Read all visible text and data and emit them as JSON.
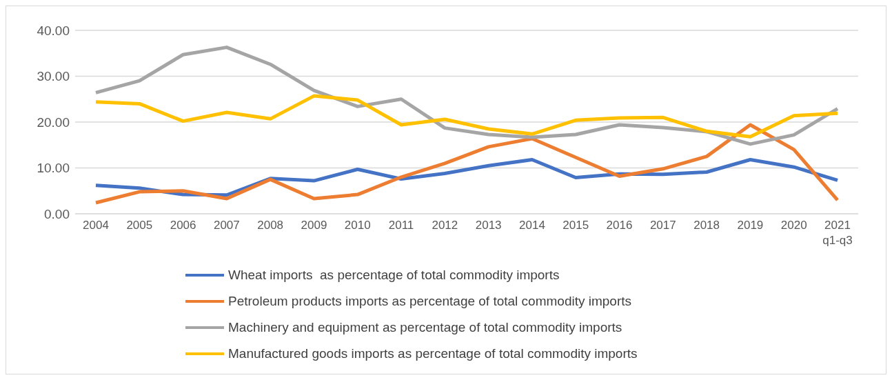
{
  "chart_data": {
    "type": "line",
    "categories": [
      "2004",
      "2005",
      "2006",
      "2007",
      "2008",
      "2009",
      "2010",
      "2011",
      "2012",
      "2013",
      "2014",
      "2015",
      "2016",
      "2017",
      "2018",
      "2019",
      "2020",
      "2021\nq1-q3"
    ],
    "series": [
      {
        "name": "Wheat imports  as percentage of total commodity imports",
        "color": "#4472c4",
        "values": [
          6.2,
          5.6,
          4.2,
          4.1,
          7.7,
          7.2,
          9.7,
          7.6,
          8.8,
          10.5,
          11.8,
          7.9,
          8.7,
          8.6,
          9.1,
          11.8,
          10.2,
          7.3
        ]
      },
      {
        "name": "Petroleum products imports as percentage of total commodity imports",
        "color": "#ed7d31",
        "values": [
          2.4,
          4.8,
          5.0,
          3.3,
          7.5,
          3.3,
          4.2,
          8.0,
          11.0,
          14.6,
          16.4,
          12.3,
          8.2,
          9.8,
          12.5,
          19.4,
          14.0,
          3.0
        ]
      },
      {
        "name": "Machinery and equipment as percentage of total commodity imports",
        "color": "#a5a5a5",
        "values": [
          26.4,
          29.0,
          34.7,
          36.3,
          32.6,
          26.9,
          23.4,
          25.0,
          18.7,
          17.3,
          16.7,
          17.3,
          19.4,
          18.8,
          17.9,
          15.2,
          17.2,
          22.9
        ]
      },
      {
        "name": "Manufactured goods imports as percentage of total commodity imports",
        "color": "#ffc000",
        "values": [
          24.4,
          24.0,
          20.2,
          22.1,
          20.7,
          25.7,
          24.8,
          19.4,
          20.6,
          18.5,
          17.4,
          20.4,
          20.9,
          21.0,
          18.0,
          16.8,
          21.4,
          21.9
        ]
      }
    ],
    "ylim": [
      0,
      40
    ],
    "yticks": [
      {
        "value": 0,
        "label": "0.00"
      },
      {
        "value": 10,
        "label": "10.00"
      },
      {
        "value": 20,
        "label": "20.00"
      },
      {
        "value": 30,
        "label": "30.00"
      },
      {
        "value": 40,
        "label": "40.00"
      }
    ],
    "grid": "y",
    "legend": "bottom",
    "marker": "none",
    "line_style": "solid"
  }
}
